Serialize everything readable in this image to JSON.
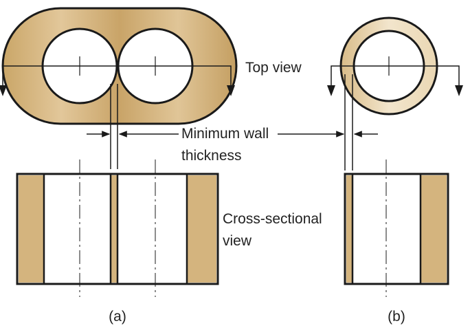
{
  "labels": {
    "top_view": "Top view",
    "minimum_wall_line1": "Minimum wall",
    "minimum_wall_line2": "thickness",
    "cross_section_line1": "Cross-sectional",
    "cross_section_line2": "view",
    "part_a": "(a)",
    "part_b": "(b)"
  },
  "colors": {
    "tan": "#d4b47e",
    "tan_light": "#f0e2c7",
    "outline": "#1a1a1a"
  }
}
